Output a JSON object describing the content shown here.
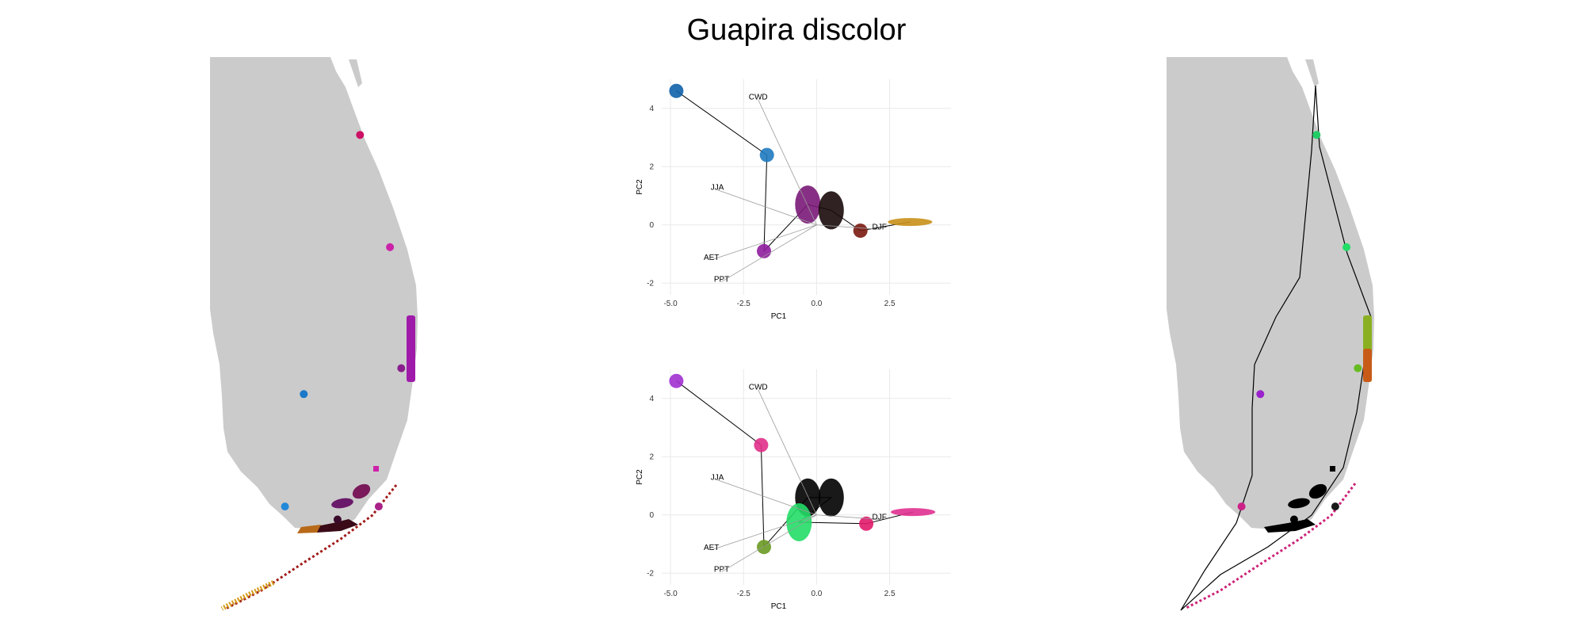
{
  "title": "Guapira discolor",
  "colors": {
    "land": "#cbcbcb",
    "grid": "#e9e9e9",
    "hull": "#000000"
  },
  "chart_data": [
    {
      "type": "map",
      "panel": "left-map",
      "points": [
        {
          "lon": -80.05,
          "lat": 27.2,
          "color": "#8a1e8c"
        },
        {
          "lon": -81.35,
          "lat": 26.9,
          "color": "#1a79c8"
        },
        {
          "lon": -80.9,
          "lat": 25.45,
          "color": "#3a0a2a"
        },
        {
          "lon": -81.6,
          "lat": 25.6,
          "color": "#2288d8"
        },
        {
          "lon": -80.35,
          "lat": 25.6,
          "color": "#aa2288"
        },
        {
          "lon": -80.2,
          "lat": 28.6,
          "color": "#cc22aa"
        },
        {
          "lon": -80.6,
          "lat": 29.9,
          "color": "#cc1166"
        }
      ]
    },
    {
      "type": "scatter",
      "panel": "top-pca",
      "xlabel": "PC1",
      "ylabel": "PC2",
      "xlim": [
        -5.3,
        4.6
      ],
      "ylim": [
        -2.4,
        5.0
      ],
      "xticks": [
        "-5.0",
        "-2.5",
        "0.0",
        "2.5"
      ],
      "xtick_values": [
        -5.0,
        -2.5,
        0.0,
        2.5
      ],
      "yticks": [
        "-2",
        "0",
        "2",
        "4"
      ],
      "ytick_values": [
        -2,
        0,
        2,
        4
      ],
      "grid": true,
      "loadings": [
        {
          "label": "CWD",
          "x": -2.0,
          "y": 4.3
        },
        {
          "label": "JJA",
          "x": -3.4,
          "y": 1.2
        },
        {
          "label": "DJF",
          "x": 2.15,
          "y": -0.15
        },
        {
          "label": "AET",
          "x": -3.6,
          "y": -1.2
        },
        {
          "label": "PPT",
          "x": -3.25,
          "y": -1.95
        }
      ],
      "clusters": [
        {
          "x": -4.8,
          "y": 4.6,
          "color": "#1060a8"
        },
        {
          "x": -1.7,
          "y": 2.4,
          "color": "#1f7ac0"
        },
        {
          "x": -1.8,
          "y": -0.9,
          "color": "#8f1c9e"
        },
        {
          "x": -0.3,
          "y": 0.7,
          "color": "#7a1878"
        },
        {
          "x": 0.5,
          "y": 0.5,
          "color": "#1a0a0a"
        },
        {
          "x": 1.5,
          "y": -0.2,
          "color": "#7a1a10"
        },
        {
          "x": 3.2,
          "y": 0.1,
          "color": "#c8901a"
        }
      ]
    },
    {
      "type": "scatter",
      "panel": "bottom-pca",
      "xlabel": "PC1",
      "ylabel": "PC2",
      "xlim": [
        -5.3,
        4.6
      ],
      "ylim": [
        -2.4,
        5.0
      ],
      "xticks": [
        "-5.0",
        "-2.5",
        "0.0",
        "2.5"
      ],
      "xtick_values": [
        -5.0,
        -2.5,
        0.0,
        2.5
      ],
      "yticks": [
        "-2",
        "0",
        "2",
        "4"
      ],
      "ytick_values": [
        -2,
        0,
        2,
        4
      ],
      "grid": true,
      "loadings": [
        {
          "label": "CWD",
          "x": -2.0,
          "y": 4.3
        },
        {
          "label": "JJA",
          "x": -3.4,
          "y": 1.2
        },
        {
          "label": "DJF",
          "x": 2.15,
          "y": -0.15
        },
        {
          "label": "AET",
          "x": -3.6,
          "y": -1.2
        },
        {
          "label": "PPT",
          "x": -3.25,
          "y": -1.95
        }
      ],
      "clusters": [
        {
          "x": -4.8,
          "y": 4.6,
          "color": "#a030d0"
        },
        {
          "x": -1.9,
          "y": 2.4,
          "color": "#e0308a"
        },
        {
          "x": -1.8,
          "y": -1.1,
          "color": "#6a9a22"
        },
        {
          "x": -0.3,
          "y": 0.6,
          "color": "#000000"
        },
        {
          "x": 0.5,
          "y": 0.6,
          "color": "#000000"
        },
        {
          "x": -0.6,
          "y": -0.25,
          "color": "#22dd66"
        },
        {
          "x": 1.7,
          "y": -0.3,
          "color": "#e01a6a"
        },
        {
          "x": 3.3,
          "y": 0.1,
          "color": "#e03090"
        }
      ]
    },
    {
      "type": "map",
      "panel": "right-map",
      "points": [
        {
          "lon": -80.05,
          "lat": 27.2,
          "color": "#66bb22"
        },
        {
          "lon": -81.35,
          "lat": 26.9,
          "color": "#9a22cc"
        },
        {
          "lon": -80.9,
          "lat": 25.45,
          "color": "#000000"
        },
        {
          "lon": -81.6,
          "lat": 25.6,
          "color": "#cc2288"
        },
        {
          "lon": -80.35,
          "lat": 25.6,
          "color": "#1a1a1a"
        },
        {
          "lon": -80.2,
          "lat": 28.6,
          "color": "#22dd66"
        },
        {
          "lon": -80.6,
          "lat": 29.9,
          "color": "#22cc66"
        }
      ]
    }
  ]
}
